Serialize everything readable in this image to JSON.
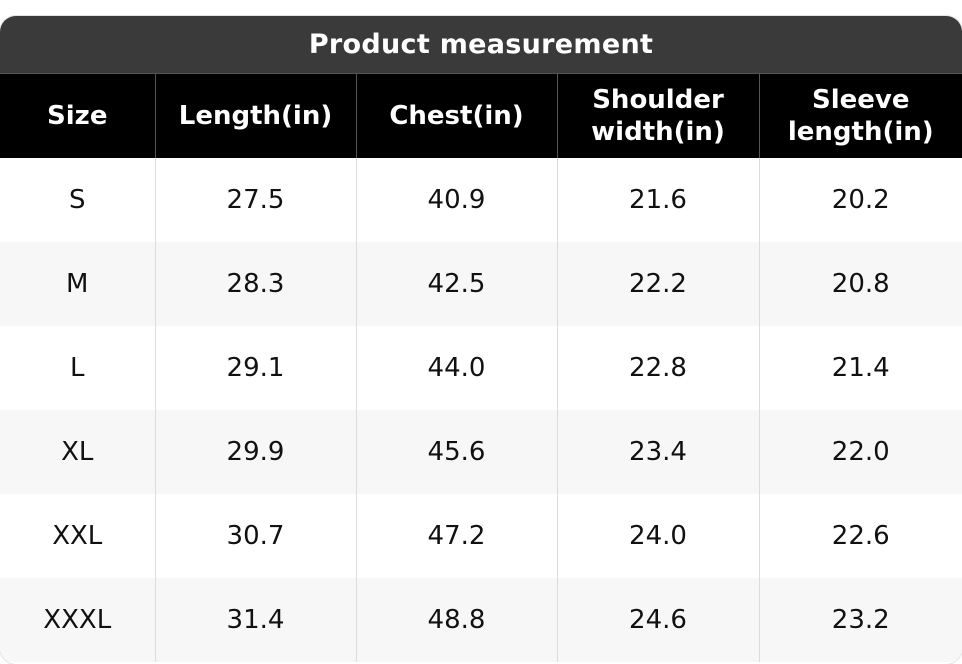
{
  "title": "Product measurement",
  "columns": [
    "Size",
    "Length(in)",
    "Chest(in)",
    "Shoulder width(in)",
    "Sleeve length(in)"
  ],
  "rows": [
    [
      "S",
      "27.5",
      "40.9",
      "21.6",
      "20.2"
    ],
    [
      "M",
      "28.3",
      "42.5",
      "22.2",
      "20.8"
    ],
    [
      "L",
      "29.1",
      "44.0",
      "22.8",
      "21.4"
    ],
    [
      "XL",
      "29.9",
      "45.6",
      "23.4",
      "22.0"
    ],
    [
      "XXL",
      "30.7",
      "47.2",
      "24.0",
      "22.6"
    ],
    [
      "XXXL",
      "31.4",
      "48.8",
      "24.6",
      "23.2"
    ]
  ],
  "colors": {
    "title_bg": "#3a3a3a",
    "header_bg": "#000000",
    "row_alt_bg": "#f7f7f7"
  }
}
